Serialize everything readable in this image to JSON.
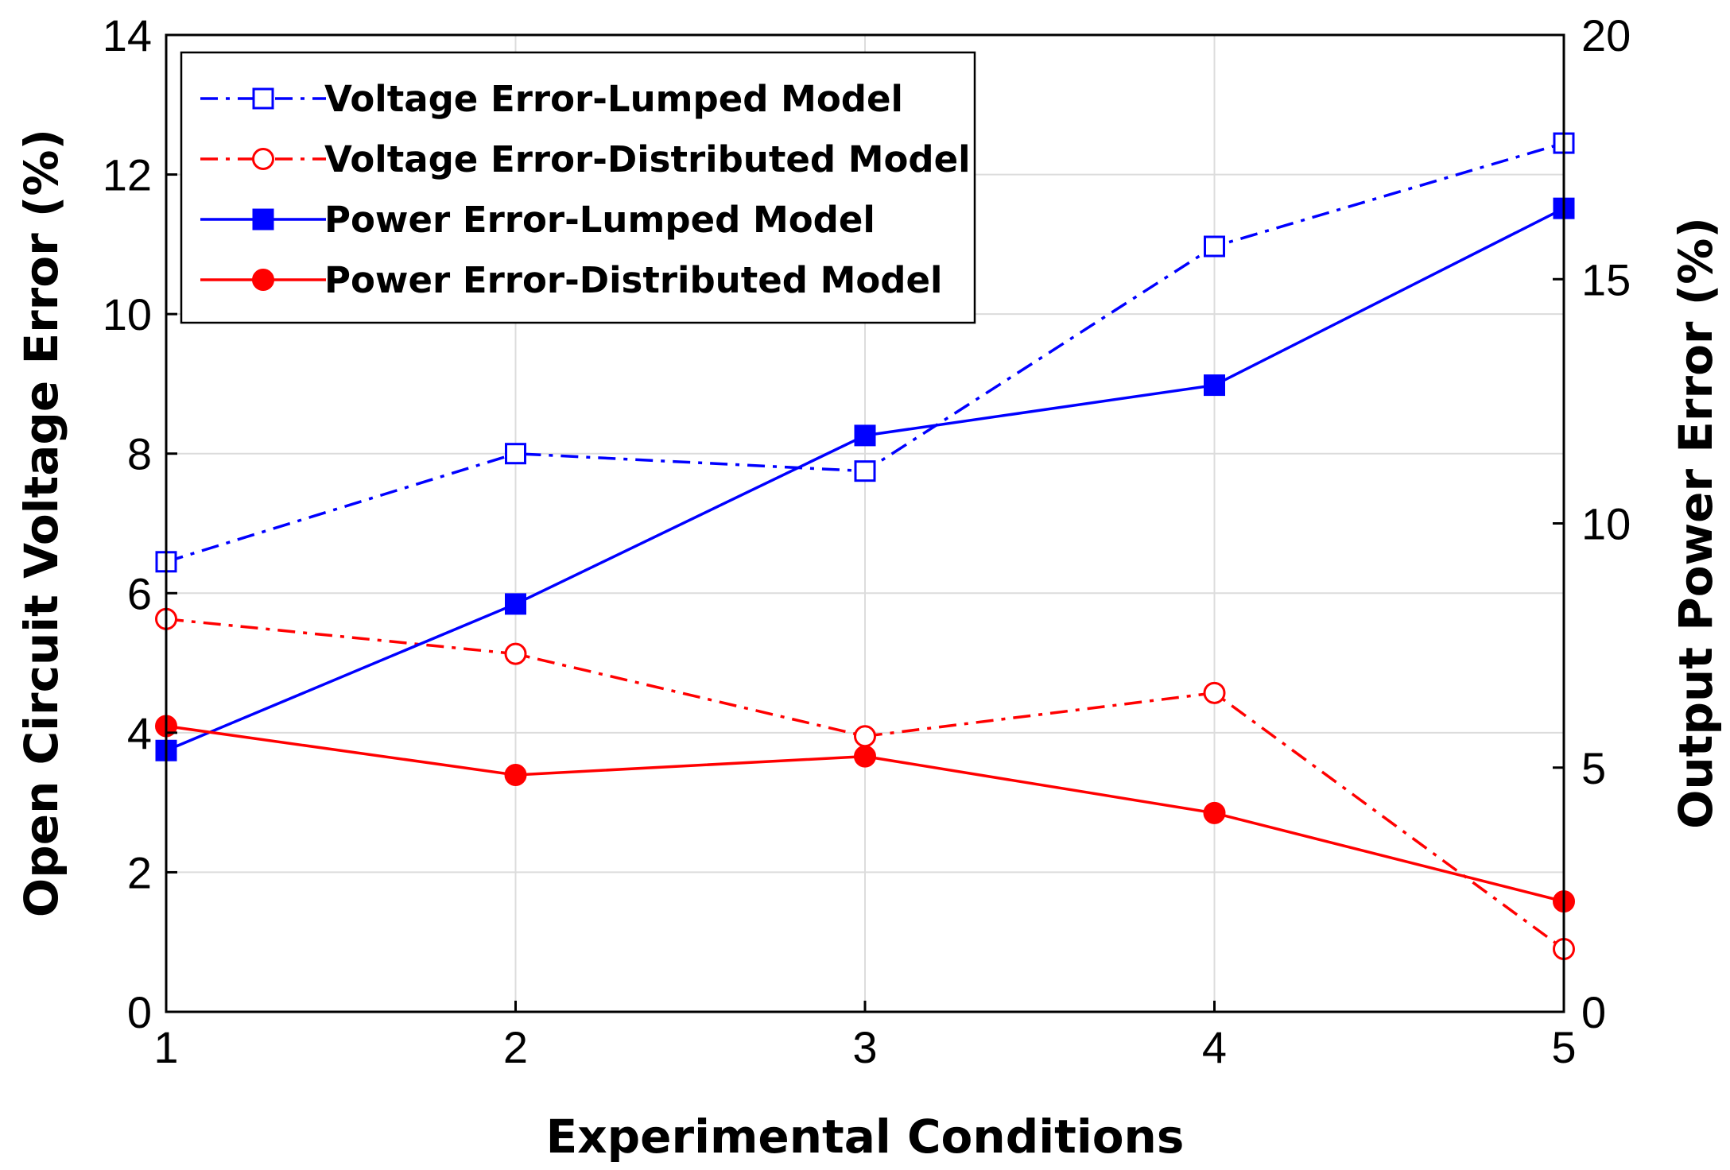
{
  "chart_data": {
    "type": "line",
    "title": "",
    "xlabel": "Experimental Conditions",
    "ylabel_left": "Open Circuit Voltage Error (%)",
    "ylabel_right": "Output Power Error (%)",
    "x": [
      1,
      2,
      3,
      4,
      5
    ],
    "xlim": [
      1,
      5
    ],
    "ylim_left": [
      0,
      14
    ],
    "ylim_right": [
      0,
      20
    ],
    "x_ticks": [
      "1",
      "2",
      "3",
      "4",
      "5"
    ],
    "y_left_ticks": [
      "0",
      "2",
      "4",
      "6",
      "8",
      "10",
      "12",
      "14"
    ],
    "y_right_ticks": [
      "0",
      "5",
      "10",
      "15",
      "20"
    ],
    "grid": true,
    "legend_position": "top-left",
    "series": [
      {
        "name": "Voltage Error-Lumped Model",
        "axis": "left",
        "color": "#0000ff",
        "line_style": "dash-dot",
        "marker": "square-open",
        "values": [
          6.45,
          8.0,
          7.75,
          10.97,
          12.45
        ]
      },
      {
        "name": "Voltage Error-Distributed Model",
        "axis": "left",
        "color": "#ff0000",
        "line_style": "dash-dot",
        "marker": "circle-open",
        "values": [
          5.63,
          5.13,
          3.95,
          4.57,
          0.9
        ]
      },
      {
        "name": "Power Error-Lumped Model",
        "axis": "right",
        "color": "#0000ff",
        "line_style": "solid",
        "marker": "square-filled",
        "values": [
          5.35,
          8.35,
          11.8,
          12.83,
          16.45
        ]
      },
      {
        "name": "Power Error-Distributed Model",
        "axis": "right",
        "color": "#ff0000",
        "line_style": "solid",
        "marker": "circle-filled",
        "values": [
          5.85,
          4.85,
          5.23,
          4.07,
          2.26
        ]
      }
    ]
  }
}
